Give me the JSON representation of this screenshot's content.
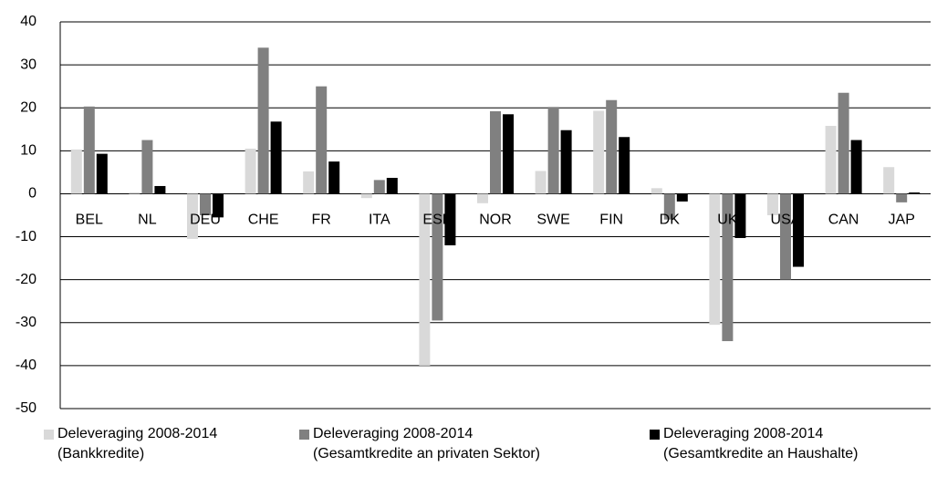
{
  "chart_data": {
    "type": "bar",
    "categories": [
      "BEL",
      "NL",
      "DEU",
      "CHE",
      "FR",
      "ITA",
      "ESP",
      "NOR",
      "SWE",
      "FIN",
      "DK",
      "UK",
      "USA",
      "CAN",
      "JAP"
    ],
    "series": [
      {
        "name": "Deleveraging 2008-2014\n(Bankkredite)",
        "color": "#d9d9d9",
        "values": [
          10.3,
          0.3,
          -10.5,
          10.5,
          5.2,
          -1,
          -40,
          -2.2,
          5.3,
          19.3,
          1.3,
          -30.5,
          -5,
          15.8,
          6.2
        ]
      },
      {
        "name": "Deleveraging 2008-2014\n(Gesamtkredite an privaten Sektor)",
        "color": "#808080",
        "values": [
          20.3,
          12.5,
          -5,
          34,
          25,
          3.2,
          -29.5,
          19.2,
          20.2,
          21.8,
          -6,
          -34.3,
          -20,
          23.5,
          -2
        ]
      },
      {
        "name": "Deleveraging 2008-2014\n(Gesamtkredite an Haushalte)",
        "color": "#000000",
        "values": [
          9.3,
          1.8,
          -5.5,
          16.8,
          7.5,
          3.7,
          -12,
          18.5,
          14.8,
          13.2,
          -1.8,
          -10.3,
          -17,
          12.5,
          0.3
        ]
      }
    ],
    "ylim": [
      -50,
      40
    ],
    "yticks": [
      -50,
      -40,
      -30,
      -20,
      -10,
      0,
      10,
      20,
      30,
      40
    ],
    "grid": true
  }
}
